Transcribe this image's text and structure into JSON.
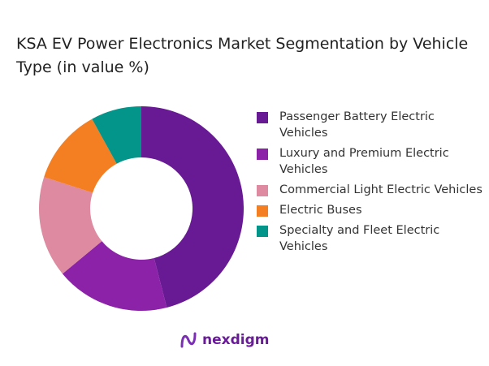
{
  "chart_data": {
    "type": "pie",
    "donut": true,
    "title": "KSA EV Power Electronics Market Segmentation by Vehicle Type (in value %)",
    "categories": [
      "Passenger Battery Electric Vehicles",
      "Luxury and Premium Electric Vehicles",
      "Commercial Light Electric Vehicles",
      "Electric Buses",
      "Specialty and Fleet Electric Vehicles"
    ],
    "values": [
      46,
      18,
      16,
      12,
      8
    ],
    "colors": [
      "#681a94",
      "#8b22a8",
      "#de8aa0",
      "#f47f22",
      "#03948a"
    ],
    "legend_position": "right"
  },
  "logo": {
    "text": "nexdigm",
    "color": "#6a1b9a"
  }
}
